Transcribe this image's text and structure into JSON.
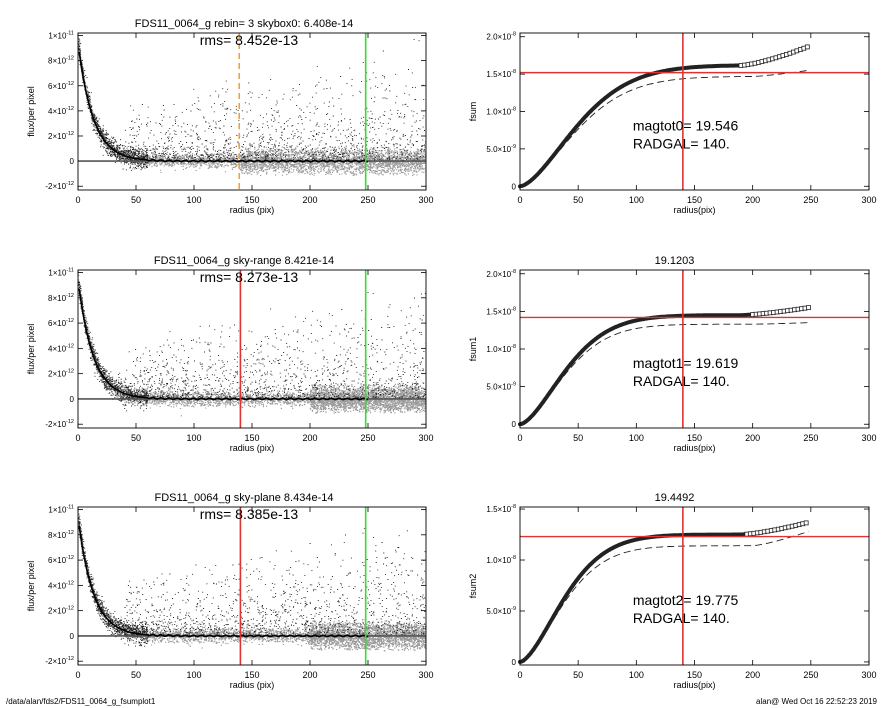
{
  "footer": {
    "path": "/data/alan/fds2/FDS11_0064_g_fsumplot1",
    "stamp": "alan@  Wed Oct 16 22:52:23 2019"
  },
  "chart_data": [
    {
      "type": "scatter",
      "title": "FDS11_0064_g rebin= 3    skybox0:  6.408e-14",
      "annotation": "rms= 8.452e-13",
      "xlabel": "radius (pix)",
      "ylabel": "flux/per pixel",
      "xlim": [
        0,
        300
      ],
      "ylim": [
        -2.3e-12,
        1.02e-11
      ],
      "xticks": [
        0,
        50,
        100,
        150,
        200,
        250,
        300
      ],
      "xtick_labels": [
        "0",
        "50",
        "100",
        "150",
        "200",
        "250",
        "300"
      ],
      "yticks": [
        -2e-12,
        0,
        2e-12,
        4e-12,
        6e-12,
        8e-12,
        1e-11
      ],
      "ytick_labels": [
        [
          "-2×10",
          "-12"
        ],
        [
          "0",
          ""
        ],
        [
          "2×10",
          "-12"
        ],
        [
          "4×10",
          "-12"
        ],
        [
          "6×10",
          "-12"
        ],
        [
          "8×10",
          "-12"
        ],
        [
          "1×10",
          "-11"
        ]
      ],
      "profile_amplitude": 9.4e-12,
      "profile_scale_length": 13,
      "profile_end": 250,
      "gray_band_start": 140,
      "vlines": [
        {
          "x": 139,
          "color": "#f0a040",
          "dashed": true
        },
        {
          "x": 248,
          "color": "#33dd33",
          "dashed": false
        }
      ],
      "grid": false,
      "legend": "none"
    },
    {
      "type": "scatter",
      "title": "FDS11_0064_g sky-range  8.421e-14",
      "annotation": "rms= 8.273e-13",
      "xlabel": "radius (pix)",
      "ylabel": "flux/per pixel",
      "xlim": [
        0,
        300
      ],
      "ylim": [
        -2.3e-12,
        1.02e-11
      ],
      "xticks": [
        0,
        50,
        100,
        150,
        200,
        250,
        300
      ],
      "xtick_labels": [
        "0",
        "50",
        "100",
        "150",
        "200",
        "250",
        "300"
      ],
      "yticks": [
        -2e-12,
        0,
        2e-12,
        4e-12,
        6e-12,
        8e-12,
        1e-11
      ],
      "ytick_labels": [
        [
          "-2×10",
          "-12"
        ],
        [
          "0",
          ""
        ],
        [
          "2×10",
          "-12"
        ],
        [
          "4×10",
          "-12"
        ],
        [
          "6×10",
          "-12"
        ],
        [
          "8×10",
          "-12"
        ],
        [
          "1×10",
          "-11"
        ]
      ],
      "profile_amplitude": 9.4e-12,
      "profile_scale_length": 13,
      "profile_end": 250,
      "gray_band_start": 200,
      "vlines": [
        {
          "x": 140,
          "color": "#dd3333",
          "dashed": false
        },
        {
          "x": 248,
          "color": "#33dd33",
          "dashed": false
        }
      ],
      "grid": false,
      "legend": "none"
    },
    {
      "type": "scatter",
      "title": "FDS11_0064_g sky-plane  8.434e-14",
      "annotation": "rms= 8.385e-13",
      "xlabel": "radius (pix)",
      "ylabel": "flux/per pixel",
      "xlim": [
        0,
        300
      ],
      "ylim": [
        -2.3e-12,
        1.02e-11
      ],
      "xticks": [
        0,
        50,
        100,
        150,
        200,
        250,
        300
      ],
      "xtick_labels": [
        "0",
        "50",
        "100",
        "150",
        "200",
        "250",
        "300"
      ],
      "yticks": [
        -2e-12,
        0,
        2e-12,
        4e-12,
        6e-12,
        8e-12,
        1e-11
      ],
      "ytick_labels": [
        [
          "-2×10",
          "-12"
        ],
        [
          "0",
          ""
        ],
        [
          "2×10",
          "-12"
        ],
        [
          "4×10",
          "-12"
        ],
        [
          "6×10",
          "-12"
        ],
        [
          "8×10",
          "-12"
        ],
        [
          "1×10",
          "-11"
        ]
      ],
      "profile_amplitude": 9.4e-12,
      "profile_scale_length": 13,
      "profile_end": 250,
      "gray_band_start": 200,
      "vlines": [
        {
          "x": 140,
          "color": "#dd3333",
          "dashed": false
        },
        {
          "x": 248,
          "color": "#33dd33",
          "dashed": false
        }
      ],
      "grid": false,
      "legend": "none"
    },
    {
      "type": "line",
      "title": "",
      "xlabel": "radius(pix)",
      "ylabel": "fsum",
      "xlim": [
        0,
        300
      ],
      "ylim": [
        -5e-10,
        2.05e-08
      ],
      "xticks": [
        0,
        50,
        100,
        150,
        200,
        250,
        300
      ],
      "xtick_labels": [
        "0",
        "50",
        "100",
        "150",
        "200",
        "250",
        "300"
      ],
      "yticks": [
        0,
        5e-09,
        1e-08,
        1.5e-08,
        2e-08
      ],
      "ytick_labels": [
        [
          "0",
          ""
        ],
        [
          "5.0×10",
          "-9"
        ],
        [
          "1.0×10",
          "-8"
        ],
        [
          "1.5×10",
          "-8"
        ],
        [
          "2.0×10",
          "-8"
        ]
      ],
      "annotation_lines": [
        "magtot0=  19.546",
        "RADGAL=    140."
      ],
      "curve_end": 248,
      "markers_from": 190,
      "curve_max": 1.62e-08,
      "curve_scale": 62,
      "curve_end_value": 1.87e-08,
      "dashed_max": 1.47e-08,
      "dashed_end_value": 1.55e-08,
      "hline_y": 1.52e-08,
      "vline_x": 140,
      "line_color": "#dd3333",
      "grid": false,
      "legend": "none"
    },
    {
      "type": "line",
      "title": "19.1203",
      "xlabel": "radius(pix)",
      "ylabel": "fsum1",
      "xlim": [
        0,
        300
      ],
      "ylim": [
        -5e-10,
        2.05e-08
      ],
      "xticks": [
        0,
        50,
        100,
        150,
        200,
        250,
        300
      ],
      "xtick_labels": [
        "0",
        "50",
        "100",
        "150",
        "200",
        "250",
        "300"
      ],
      "yticks": [
        0,
        5e-09,
        1e-08,
        1.5e-08,
        2e-08
      ],
      "ytick_labels": [
        [
          "0",
          ""
        ],
        [
          "5.0×10",
          "-9"
        ],
        [
          "1.0×10",
          "-8"
        ],
        [
          "1.5×10",
          "-8"
        ],
        [
          "2.0×10",
          "-8"
        ]
      ],
      "annotation_lines": [
        "magtot1=  19.619",
        "RADGAL=    140."
      ],
      "curve_end": 248,
      "markers_from": 200,
      "curve_max": 1.45e-08,
      "curve_scale": 50,
      "curve_end_value": 1.55e-08,
      "dashed_max": 1.33e-08,
      "dashed_end_value": 1.35e-08,
      "hline_y": 1.42e-08,
      "vline_x": 140,
      "line_color": "#dd3333",
      "grid": false,
      "legend": "none"
    },
    {
      "type": "line",
      "title": "19.4492",
      "xlabel": "radius(pix)",
      "ylabel": "fsum2",
      "xlim": [
        0,
        300
      ],
      "ylim": [
        -3e-10,
        1.52e-08
      ],
      "xticks": [
        0,
        50,
        100,
        150,
        200,
        250,
        300
      ],
      "xtick_labels": [
        "0",
        "50",
        "100",
        "150",
        "200",
        "250",
        "300"
      ],
      "yticks": [
        0,
        5e-09,
        1e-08,
        1.5e-08
      ],
      "ytick_labels": [
        [
          "0",
          ""
        ],
        [
          "5.0×10",
          "-9"
        ],
        [
          "1.0×10",
          "-8"
        ],
        [
          "1.5×10",
          "-8"
        ]
      ],
      "annotation_lines": [
        "magtot2=  19.775",
        "RADGAL=    140."
      ],
      "curve_end": 248,
      "markers_from": 195,
      "curve_max": 1.25e-08,
      "curve_scale": 48,
      "curve_end_value": 1.37e-08,
      "dashed_max": 1.14e-08,
      "dashed_end_value": 1.28e-08,
      "hline_y": 1.23e-08,
      "vline_x": 140,
      "line_color": "#dd3333",
      "grid": false,
      "legend": "none"
    }
  ]
}
